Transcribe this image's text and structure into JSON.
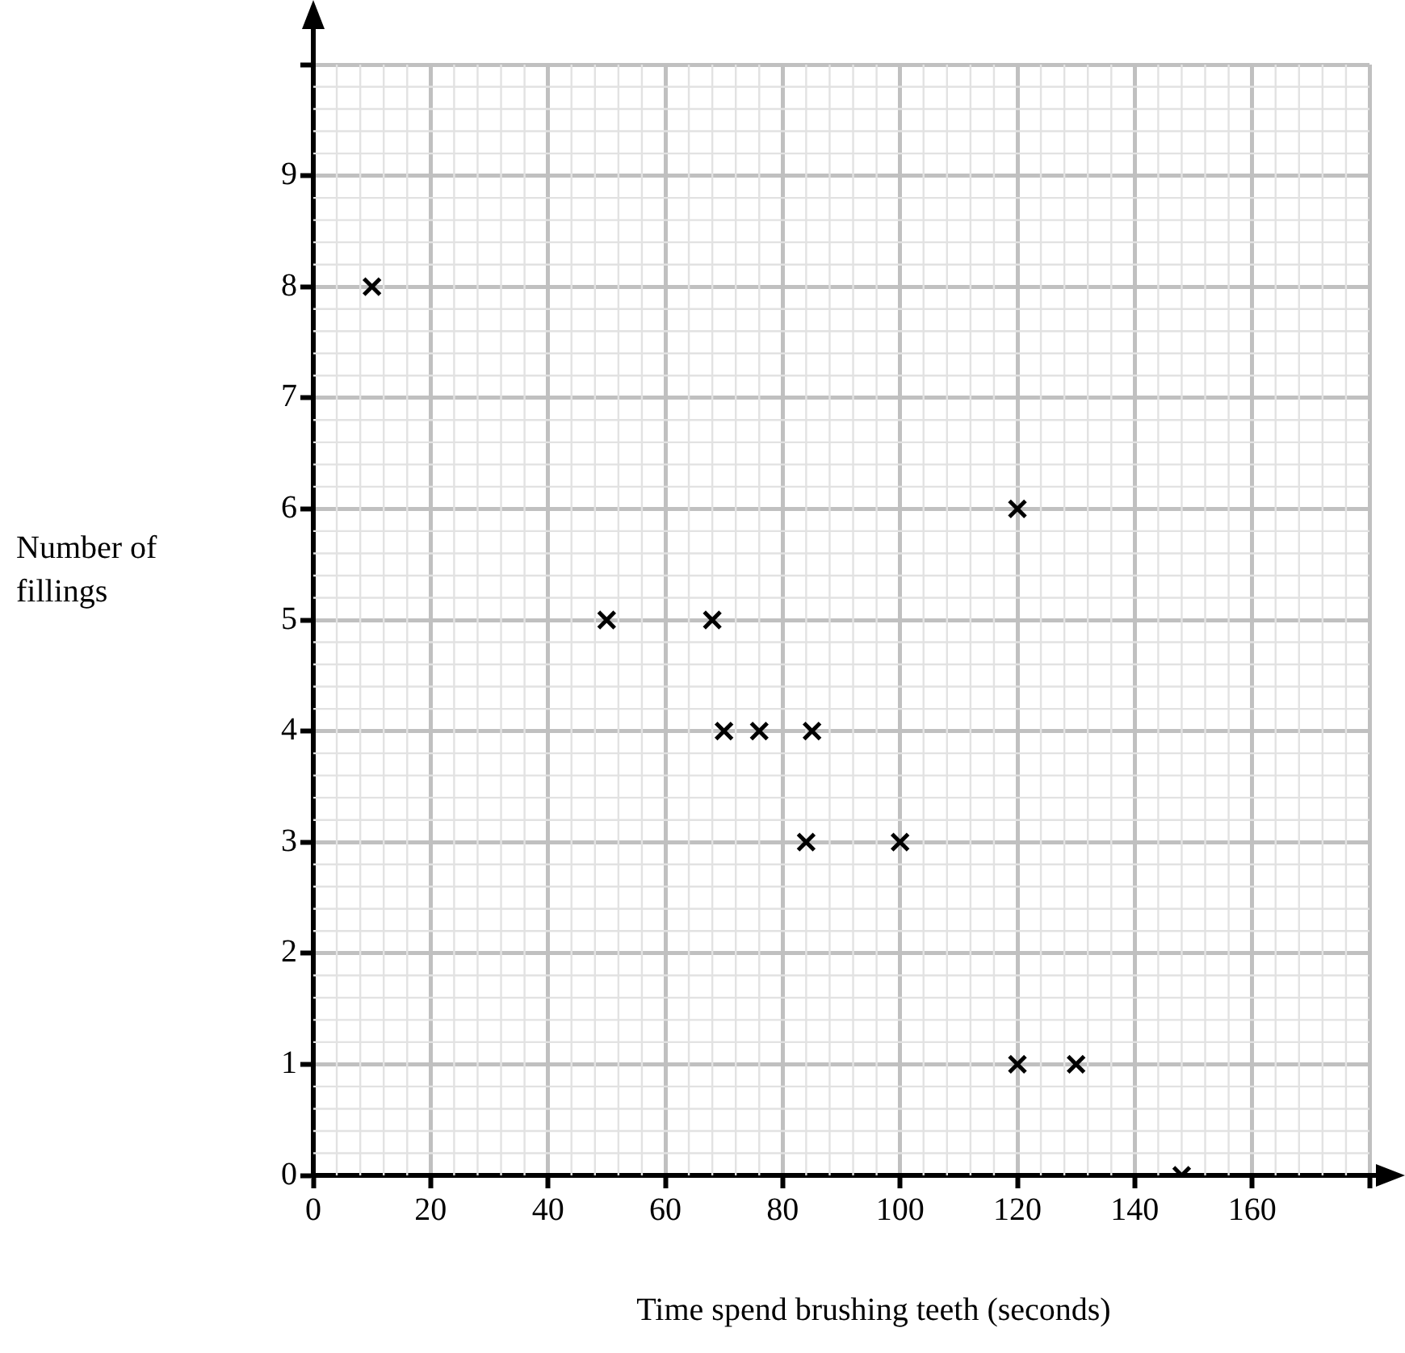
{
  "chart_data": {
    "type": "scatter",
    "xlabel": "Time spend brushing teeth (seconds)",
    "ylabel": "Number of fillings",
    "x": [
      10,
      50,
      68,
      70,
      76,
      85,
      84,
      100,
      120,
      120,
      130,
      148
    ],
    "series": [
      {
        "color": "#000000",
        "values": [
          8,
          5,
          5,
          4,
          4,
          4,
          3,
          3,
          6,
          1,
          1,
          0
        ]
      }
    ],
    "xlim": [
      0,
      180
    ],
    "ylim": [
      0,
      10
    ],
    "xticks": [
      0,
      20,
      40,
      60,
      80,
      100,
      120,
      140,
      160,
      {
        "value": 180,
        "label": null
      }
    ],
    "yticks": [
      0,
      1,
      2,
      3,
      4,
      5,
      6,
      7,
      8,
      9,
      {
        "value": 10,
        "label": null
      }
    ],
    "grid": true,
    "marker": "cross",
    "legend": false
  }
}
